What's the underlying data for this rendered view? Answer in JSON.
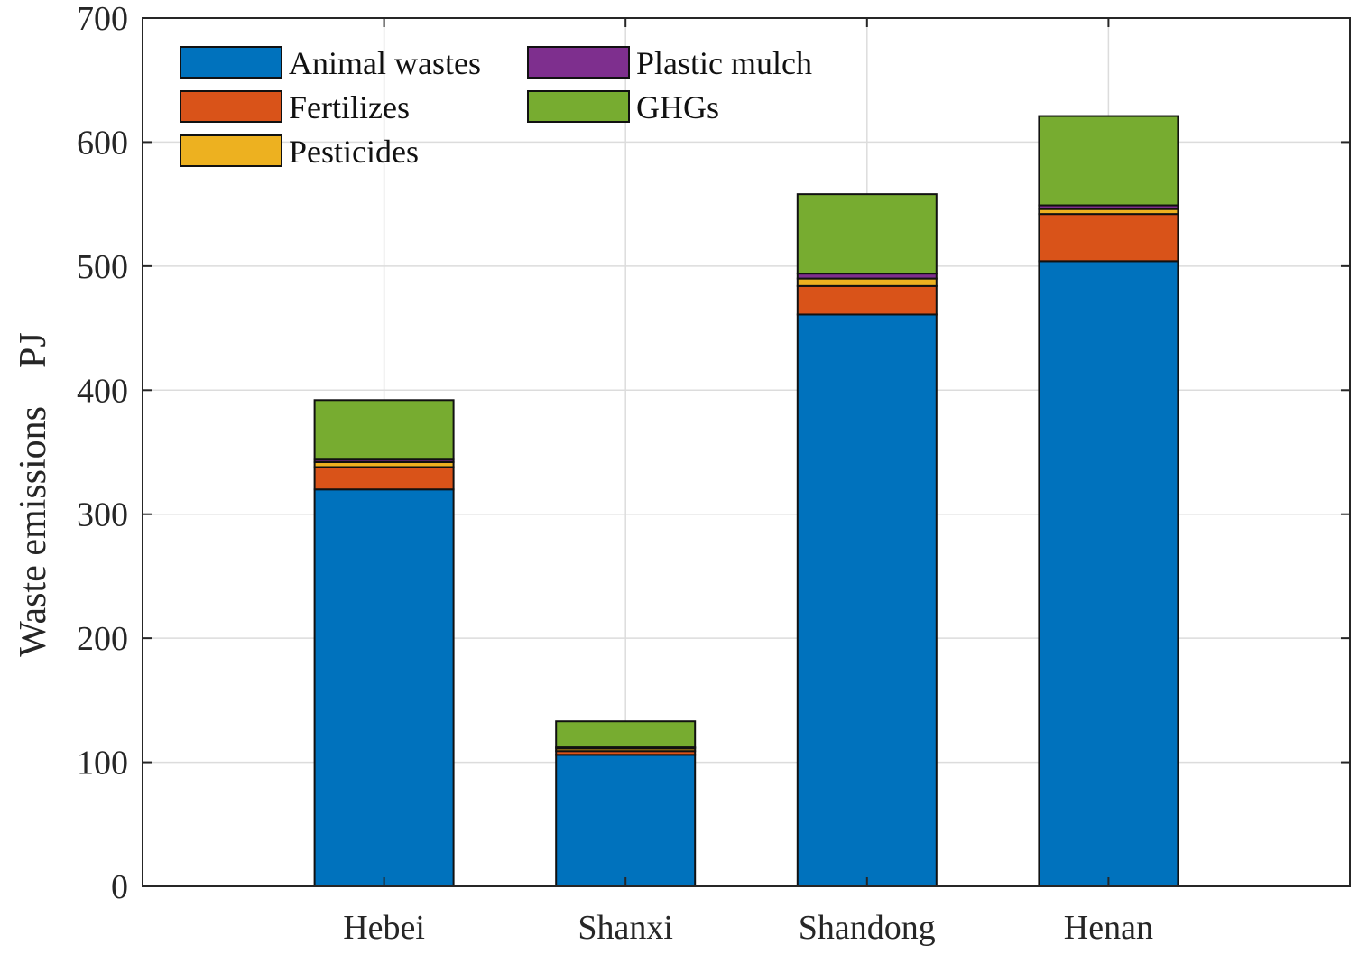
{
  "chart_data": {
    "type": "bar",
    "stacked": true,
    "categories": [
      "Hebei",
      "Shanxi",
      "Shandong",
      "Henan"
    ],
    "series": [
      {
        "name": "Animal wastes",
        "color": "#0072BD",
        "values": [
          320,
          106,
          461,
          504
        ]
      },
      {
        "name": "Fertilizes",
        "color": "#D95319",
        "values": [
          18,
          3,
          23,
          38
        ]
      },
      {
        "name": "Pesticides",
        "color": "#EDB120",
        "values": [
          4,
          2,
          6,
          4
        ]
      },
      {
        "name": "Plastic mulch",
        "color": "#7E2F8E",
        "values": [
          2,
          1,
          4,
          3
        ]
      },
      {
        "name": "GHGs",
        "color": "#77AC30",
        "values": [
          48,
          21,
          64,
          72
        ]
      }
    ],
    "xlabel": "",
    "ylabel": "Waste emissions    PJ",
    "ylim": [
      0,
      700
    ],
    "yticks": [
      0,
      100,
      200,
      300,
      400,
      500,
      600,
      700
    ],
    "grid": true,
    "legend_position": "top-left",
    "legend_order": [
      "Animal wastes",
      "Plastic mulch",
      "Fertilizes",
      "GHGs",
      "Pesticides"
    ]
  }
}
